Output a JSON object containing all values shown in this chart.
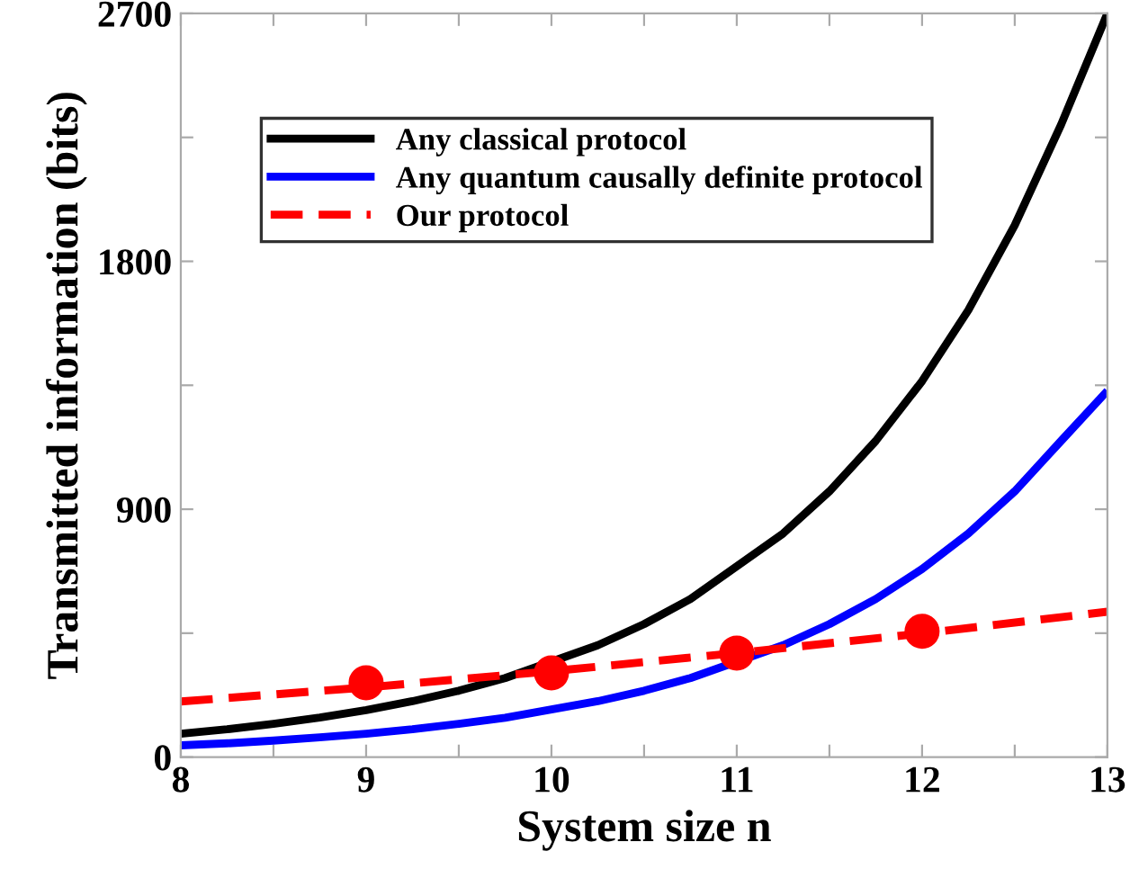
{
  "chart_data": {
    "type": "line",
    "xlabel": "System size n",
    "ylabel": "Transmitted information (bits)",
    "xlim": [
      8,
      13
    ],
    "ylim": [
      0,
      2700
    ],
    "xticks": [
      8,
      {
        "value": 8.5,
        "label": null
      },
      9,
      {
        "value": 9.5,
        "label": null
      },
      10,
      {
        "value": 10.5,
        "label": null
      },
      11,
      {
        "value": 11.5,
        "label": null
      },
      12,
      {
        "value": 12.5,
        "label": null
      },
      13
    ],
    "yticks": [
      0,
      {
        "value": 450,
        "label": null
      },
      900,
      {
        "value": 1350,
        "label": null
      },
      1800,
      {
        "value": 2250,
        "label": null
      },
      2700
    ],
    "grid": false,
    "legend": "top left",
    "series": [
      {
        "name": "Any classical protocol",
        "color": "#000000",
        "line_style": "solid",
        "x": [
          8,
          8.25,
          8.5,
          8.75,
          9,
          9.25,
          9.5,
          9.75,
          10.25,
          10.5,
          10.75,
          11.25,
          11.5,
          11.75,
          12,
          12.25,
          12.5,
          12.75,
          13
        ],
        "values": [
          85,
          101,
          121,
          144,
          171,
          203,
          241,
          287,
          406,
          483,
          574,
          812,
          965,
          1148,
          1365,
          1623,
          1931,
          2296,
          2700
        ]
      },
      {
        "name": "Any quantum causally definite protocol",
        "color": "#0000ff",
        "line_style": "solid",
        "x": [
          8,
          8.25,
          8.5,
          8.75,
          9,
          9.25,
          9.5,
          9.75,
          10.25,
          10.5,
          10.75,
          11.25,
          11.5,
          11.75,
          12,
          12.25,
          12.5,
          12.75,
          13
        ],
        "values": [
          43,
          50,
          60,
          72,
          85,
          101,
          121,
          143,
          203,
          241,
          287,
          406,
          483,
          574,
          683,
          812,
          965,
          1148,
          1330
        ]
      },
      {
        "name": "Our protocol",
        "color": "#ff0000",
        "line_style": "dashed",
        "x": [
          8,
          9,
          10,
          11,
          12,
          13
        ],
        "values": [
          202,
          253,
          312,
          378,
          449,
          528
        ]
      },
      {
        "type": "scatter",
        "color": "#ff0000",
        "marker": "circle",
        "x": [
          9,
          10,
          11,
          12
        ],
        "values": [
          270,
          306,
          378,
          457
        ]
      }
    ]
  }
}
